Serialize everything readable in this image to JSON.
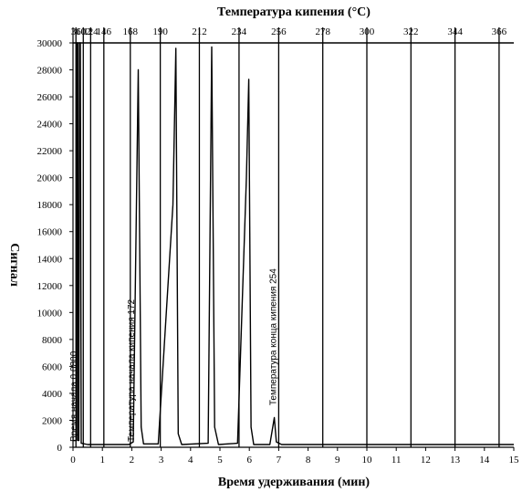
{
  "chart_data": {
    "type": "line",
    "title_top": "Температура кипения (°C)",
    "xlabel": "Время удерживания (мин)",
    "ylabel": "Сигнал",
    "xlim": [
      0,
      15
    ],
    "ylim": [
      0,
      30000
    ],
    "x_ticks": [
      0,
      1,
      2,
      3,
      4,
      5,
      6,
      7,
      8,
      9,
      10,
      11,
      12,
      13,
      14,
      15
    ],
    "y_ticks": [
      0,
      2000,
      4000,
      6000,
      8000,
      10000,
      12000,
      14000,
      16000,
      18000,
      20000,
      22000,
      24000,
      26000,
      28000,
      30000
    ],
    "top_ticks": [
      {
        "label": "36",
        "x": 0.1
      },
      {
        "label": "102",
        "x": 0.35
      },
      {
        "label": "124",
        "x": 0.6
      },
      {
        "label": "146",
        "x": 1.05
      },
      {
        "label": "168",
        "x": 1.95
      },
      {
        "label": "190",
        "x": 2.97
      },
      {
        "label": "212",
        "x": 4.3
      },
      {
        "label": "234",
        "x": 5.65
      },
      {
        "label": "256",
        "x": 7.0
      },
      {
        "label": "278",
        "x": 8.5
      },
      {
        "label": "300",
        "x": 10.0
      },
      {
        "label": "322",
        "x": 11.5
      },
      {
        "label": "344",
        "x": 13.0
      },
      {
        "label": "366",
        "x": 14.5
      }
    ],
    "series": [
      {
        "values": [
          [
            0.0,
            500
          ],
          [
            0.12,
            500
          ],
          [
            0.13,
            30000
          ],
          [
            0.16,
            30000
          ],
          [
            0.17,
            500
          ],
          [
            0.2,
            500
          ],
          [
            0.22,
            30000
          ],
          [
            0.25,
            30000
          ],
          [
            0.28,
            300
          ],
          [
            0.5,
            200
          ],
          [
            1.0,
            200
          ],
          [
            1.9,
            200
          ],
          [
            2.05,
            400
          ],
          [
            2.22,
            28000
          ],
          [
            2.32,
            1500
          ],
          [
            2.4,
            250
          ],
          [
            2.9,
            250
          ],
          [
            3.4,
            18000
          ],
          [
            3.5,
            29600
          ],
          [
            3.58,
            1000
          ],
          [
            3.7,
            200
          ],
          [
            4.6,
            300
          ],
          [
            4.72,
            29700
          ],
          [
            4.82,
            1500
          ],
          [
            4.95,
            200
          ],
          [
            5.6,
            300
          ],
          [
            5.9,
            20000
          ],
          [
            5.98,
            27300
          ],
          [
            6.06,
            1500
          ],
          [
            6.15,
            200
          ],
          [
            6.7,
            200
          ],
          [
            6.85,
            2200
          ],
          [
            6.92,
            400
          ],
          [
            7.1,
            200
          ],
          [
            15.0,
            200
          ]
        ]
      }
    ],
    "annotations": [
      {
        "text": "Время начала 0,0800",
        "x": 0.0,
        "y": 0
      },
      {
        "text": "Температура начала кипения 172",
        "x": 1.95,
        "y": 0
      },
      {
        "text": "Температура конца кипения 254",
        "x": 6.78,
        "y": 2700
      }
    ]
  }
}
